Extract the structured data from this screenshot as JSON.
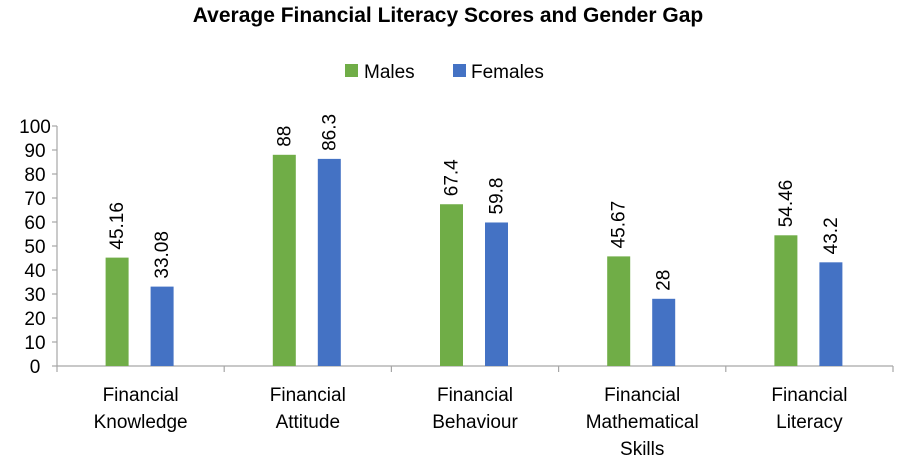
{
  "chart_data": {
    "type": "bar",
    "title": "Average Financial Literacy Scores and Gender Gap",
    "xlabel": "",
    "ylabel": "",
    "ylim": [
      0,
      100
    ],
    "yticks": [
      0,
      10,
      20,
      30,
      40,
      50,
      60,
      70,
      80,
      90,
      100
    ],
    "grid": false,
    "legend_position": "top",
    "categories": [
      [
        "Financial",
        "Knowledge"
      ],
      [
        "Financial",
        "Attitude"
      ],
      [
        "Financial",
        "Behaviour"
      ],
      [
        "Financial",
        "Mathematical",
        "Skills"
      ],
      [
        "Financial",
        "Literacy"
      ]
    ],
    "series": [
      {
        "name": "Males",
        "color": "#70ad47",
        "values": [
          45.16,
          88,
          67.4,
          45.67,
          54.46
        ],
        "labels": [
          "45.16",
          "88",
          "67.4",
          "45.67",
          "54.46"
        ]
      },
      {
        "name": "Females",
        "color": "#4472c4",
        "values": [
          33.08,
          86.3,
          59.8,
          28,
          43.2
        ],
        "labels": [
          "33.08",
          "86.3",
          "59.8",
          "28",
          "43.2"
        ]
      }
    ]
  }
}
